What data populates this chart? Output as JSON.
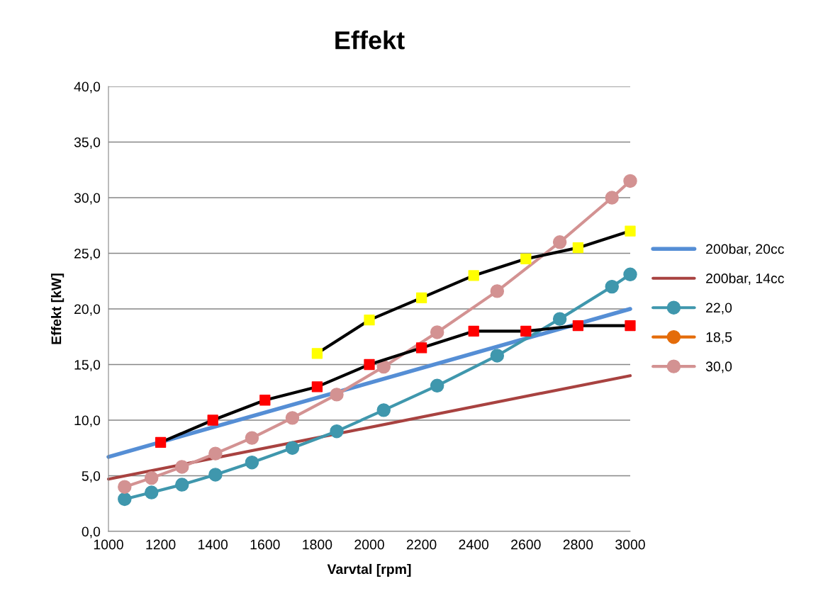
{
  "chart_data": {
    "type": "line",
    "title": "Effekt",
    "xlabel": "Varvtal [rpm]",
    "ylabel": "Effekt [kW]",
    "xlim": [
      1000,
      3000
    ],
    "xticks": [
      1000,
      1200,
      1400,
      1600,
      1800,
      2000,
      2200,
      2400,
      2600,
      2800,
      3000
    ],
    "ylim": [
      0,
      40
    ],
    "yticks": [
      {
        "value": 0,
        "label": "0,0"
      },
      {
        "value": 5,
        "label": "5,0"
      },
      {
        "value": 10,
        "label": "10,0"
      },
      {
        "value": 15,
        "label": "15,0"
      },
      {
        "value": 20,
        "label": "20,0"
      },
      {
        "value": 25,
        "label": "25,0"
      },
      {
        "value": 30,
        "label": "30,0"
      },
      {
        "value": 35,
        "label": "35,0"
      },
      {
        "value": 40,
        "label": "40,0"
      }
    ],
    "grid": "y",
    "legend": "right",
    "series": [
      {
        "name": "200bar, 20cc",
        "color": "#558ed5",
        "marker": "none",
        "x": [
          1000,
          3000
        ],
        "values": [
          6.7,
          20.0
        ]
      },
      {
        "name": "200bar, 14cc",
        "color": "#a84240",
        "marker": "none",
        "x": [
          1000,
          3000
        ],
        "values": [
          4.7,
          14.0
        ]
      },
      {
        "name": "22,0",
        "color": "#3f97ad",
        "marker": "circle",
        "x": [
          1062,
          1165,
          1282,
          1410,
          1550,
          1705,
          1875,
          2055,
          2260,
          2490,
          2730,
          2930,
          3000
        ],
        "values": [
          2.9,
          3.5,
          4.2,
          5.1,
          6.2,
          7.5,
          9.0,
          10.9,
          13.1,
          15.8,
          19.1,
          22.0,
          23.1
        ]
      },
      {
        "name": "18,5",
        "color": "#e46c0a",
        "marker": "circle"
      },
      {
        "name": "30,0",
        "color": "#d39292",
        "marker": "circle",
        "x": [
          1062,
          1165,
          1282,
          1410,
          1550,
          1705,
          1875,
          2055,
          2260,
          2490,
          2730,
          2930,
          3000
        ],
        "values": [
          4.0,
          4.8,
          5.8,
          7.0,
          8.4,
          10.2,
          12.3,
          14.8,
          17.9,
          21.6,
          26.0,
          30.0,
          31.5
        ]
      },
      {
        "color": "#000000",
        "marker": "square",
        "colors": [
          "#ffff00",
          "#ffff00",
          "#ffff00",
          "#ffff00",
          "#ffff00",
          "#ffff00",
          "#ffff00"
        ],
        "x": [
          1800,
          2000,
          2200,
          2400,
          2600,
          2800,
          3000
        ],
        "values": [
          16.0,
          19.0,
          21.0,
          23.0,
          24.5,
          25.5,
          27.0
        ]
      },
      {
        "color": "#000000",
        "marker": "square",
        "colors": [
          "#ff0000",
          "#ff0000",
          "#ff0000",
          "#ff0000",
          "#ff0000",
          "#ff0000",
          "#ff0000",
          "#ff0000",
          "#ff0000",
          "#ff0000"
        ],
        "x": [
          1200,
          1400,
          1600,
          1800,
          2000,
          2200,
          2400,
          2600,
          2800,
          3000
        ],
        "values": [
          8.0,
          10.0,
          11.8,
          13.0,
          15.0,
          16.5,
          18.0,
          18.0,
          18.5,
          18.5
        ]
      }
    ]
  }
}
